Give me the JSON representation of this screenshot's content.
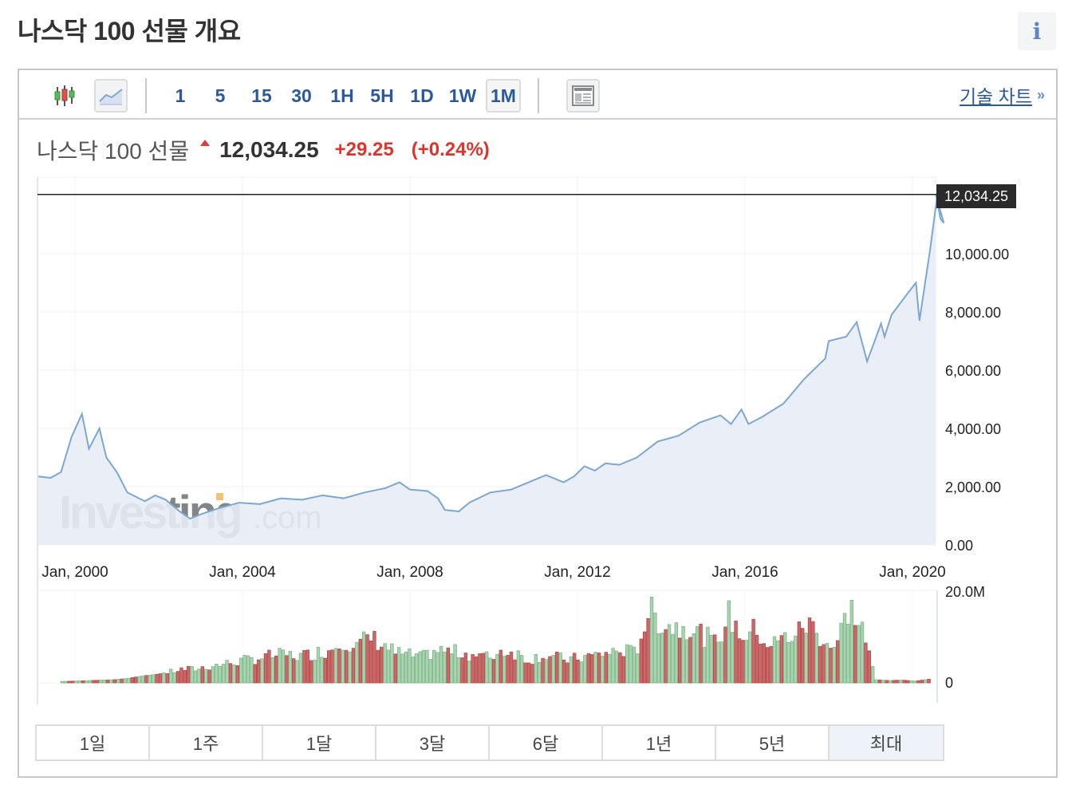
{
  "page": {
    "title": "나스닥 100 선물 개요",
    "info_icon": "i"
  },
  "toolbar": {
    "chart_types": [
      {
        "name": "candlestick-icon",
        "active": false
      },
      {
        "name": "area-chart-icon",
        "active": true
      }
    ],
    "timeframes": [
      {
        "label": "1",
        "active": false
      },
      {
        "label": "5",
        "active": false
      },
      {
        "label": "15",
        "active": false
      },
      {
        "label": "30",
        "active": false
      },
      {
        "label": "1H",
        "active": false
      },
      {
        "label": "5H",
        "active": false
      },
      {
        "label": "1D",
        "active": false
      },
      {
        "label": "1W",
        "active": false
      },
      {
        "label": "1M",
        "active": true
      }
    ],
    "layout_icon": "table-layout-icon",
    "tech_chart_link": "기술 차트",
    "tech_chart_chevron": "»"
  },
  "quote": {
    "name": "나스닥 100 선물",
    "direction": "up",
    "price": "12,034.25",
    "change": "+29.25",
    "change_pct": "(+0.24%)",
    "up_color": "#e0332c"
  },
  "watermark": {
    "brand": "Investing",
    "suffix": ".com"
  },
  "range_buttons": [
    {
      "label": "1일",
      "active": false
    },
    {
      "label": "1주",
      "active": false
    },
    {
      "label": "1달",
      "active": false
    },
    {
      "label": "3달",
      "active": false
    },
    {
      "label": "6달",
      "active": false
    },
    {
      "label": "1년",
      "active": false
    },
    {
      "label": "5년",
      "active": false
    },
    {
      "label": "최대",
      "active": true
    }
  ],
  "chart_data": [
    {
      "type": "area",
      "title": "나스닥 100 선물",
      "xlabel": "",
      "ylabel": "",
      "x_tick_labels": [
        "Jan, 2000",
        "Jan, 2004",
        "Jan, 2008",
        "Jan, 2012",
        "Jan, 2016",
        "Jan, 2020"
      ],
      "y_tick_labels": [
        "0.00",
        "2,000.00",
        "4,000.00",
        "6,000.00",
        "8,000.00",
        "10,000.00"
      ],
      "ylim": [
        0,
        12700
      ],
      "grid": true,
      "last_value_label": "12,034.25",
      "line_color": "#7ba7d4",
      "fill_color": "#e8edf6",
      "x": [
        "1999-02",
        "1999-06",
        "1999-09",
        "1999-12",
        "2000-03",
        "2000-05",
        "2000-08",
        "2000-10",
        "2001-01",
        "2001-04",
        "2001-09",
        "2001-12",
        "2002-03",
        "2002-07",
        "2002-10",
        "2003-01",
        "2003-06",
        "2003-12",
        "2004-06",
        "2004-12",
        "2005-06",
        "2005-12",
        "2006-06",
        "2006-12",
        "2007-06",
        "2007-10",
        "2008-01",
        "2008-06",
        "2008-09",
        "2008-11",
        "2009-03",
        "2009-06",
        "2009-12",
        "2010-06",
        "2010-12",
        "2011-04",
        "2011-09",
        "2011-12",
        "2012-03",
        "2012-06",
        "2012-09",
        "2013-01",
        "2013-06",
        "2013-12",
        "2014-06",
        "2014-12",
        "2015-06",
        "2015-09",
        "2015-12",
        "2016-02",
        "2016-06",
        "2016-12",
        "2017-06",
        "2017-12",
        "2018-01",
        "2018-06",
        "2018-09",
        "2018-12",
        "2019-04",
        "2019-05",
        "2019-07",
        "2019-12",
        "2020-02",
        "2020-03",
        "2020-06",
        "2020-08",
        "2020-09",
        "2020-10",
        "2020-12"
      ],
      "values": [
        2350,
        2300,
        2500,
        3700,
        4500,
        3300,
        4000,
        3000,
        2500,
        1800,
        1500,
        1700,
        1550,
        1150,
        900,
        1050,
        1250,
        1450,
        1400,
        1600,
        1550,
        1700,
        1600,
        1800,
        1950,
        2150,
        1900,
        1850,
        1600,
        1200,
        1150,
        1450,
        1800,
        1900,
        2200,
        2400,
        2150,
        2350,
        2700,
        2550,
        2800,
        2750,
        3000,
        3550,
        3750,
        4200,
        4450,
        4150,
        4650,
        4150,
        4400,
        4850,
        5700,
        6400,
        7000,
        7150,
        7650,
        6300,
        7600,
        7150,
        7900,
        8700,
        9000,
        7700,
        10100,
        11900,
        11200,
        11050,
        12034.25
      ]
    },
    {
      "type": "bar",
      "title": "Volume",
      "y_tick_labels": [
        "0",
        "20.0M"
      ],
      "ylim": [
        0,
        20000000
      ],
      "up_color": "#9fd0a6",
      "down_color": "#c96060",
      "note": "monthly volume bars, green = up month, red = down month",
      "x_range": [
        "1999-02",
        "2020-12"
      ],
      "approx_values_M": [
        0.3,
        0.4,
        0.5,
        0.6,
        0.7,
        1.0,
        1.5,
        1.8,
        2.3,
        2.9,
        3.0,
        3.5,
        4.0,
        4.5,
        5.0,
        5.5,
        6.0,
        6.0,
        5.8,
        6.5,
        7.0,
        9.5,
        7.5,
        10.0,
        8.5,
        6.5,
        6.0,
        5.5,
        7.0,
        6.8,
        6.5,
        6.0,
        5.5,
        7.0,
        6.5,
        5.0,
        6.0,
        5.5,
        5.0,
        5.5,
        6.0,
        6.5,
        7.0,
        6.5,
        15.5,
        13.0,
        12.0,
        12.5,
        10.5,
        8.5,
        14.5,
        10.0,
        11.5,
        8.0,
        9.5,
        10.5,
        13.0,
        9.5,
        7.5,
        16.5,
        12.0,
        0.7,
        0.5,
        0.6,
        0.4,
        0.8
      ]
    }
  ]
}
